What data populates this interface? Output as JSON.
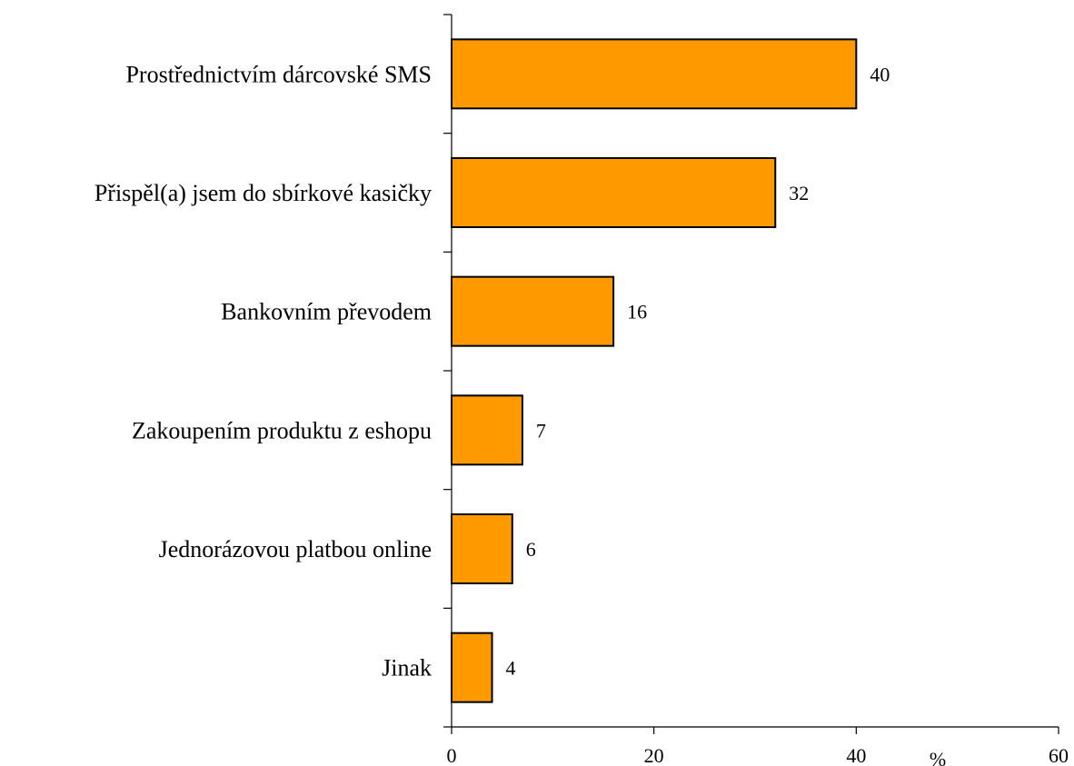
{
  "chart_data": {
    "type": "bar",
    "orientation": "horizontal",
    "categories": [
      "Prostřednictvím dárcovské SMS",
      "Přispěl(a) jsem do sbírkové kasičky",
      "Bankovním převodem",
      "Zakoupením produktu z eshopu",
      "Jednorázovou platbou online",
      "Jinak"
    ],
    "values": [
      40,
      32,
      16,
      7,
      6,
      4
    ],
    "data_labels": [
      "40",
      "32",
      "16",
      "7",
      "6",
      "4"
    ],
    "xlim": [
      0,
      60
    ],
    "x_ticks": [
      0,
      20,
      40,
      60
    ],
    "x_tick_labels": [
      "0",
      "20",
      "40",
      "60"
    ],
    "x_unit": "%",
    "bar_color": "#FF9900",
    "bar_edge_color": "#000000",
    "grid": false,
    "legend": "none"
  }
}
